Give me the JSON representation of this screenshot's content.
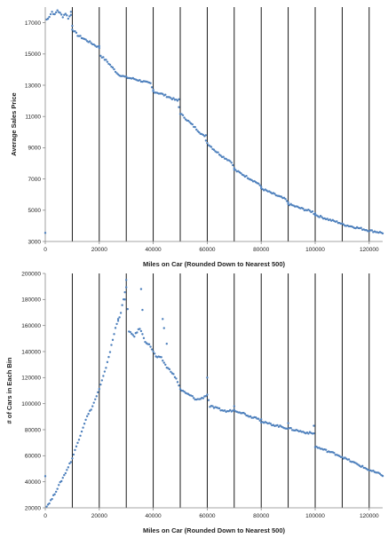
{
  "chart_data": [
    {
      "type": "scatter",
      "title": "",
      "xlabel": "Miles on Car (Rounded Down to Nearest 500)",
      "ylabel": "Average Sales Price",
      "xlim": [
        0,
        125000
      ],
      "ylim": [
        3000,
        18000
      ],
      "xticks": [
        0,
        20000,
        40000,
        60000,
        80000,
        100000,
        120000
      ],
      "yticks": [
        3000,
        5000,
        7000,
        9000,
        11000,
        13000,
        15000,
        17000
      ],
      "vlines": [
        10000,
        20000,
        30000,
        40000,
        50000,
        60000,
        70000,
        80000,
        90000,
        100000,
        110000,
        120000
      ],
      "marker_color": "#4f81bd",
      "anchors": [
        [
          500,
          17200
        ],
        [
          1500,
          17400
        ],
        [
          2500,
          17700
        ],
        [
          3500,
          17500
        ],
        [
          4500,
          17800
        ],
        [
          5500,
          17600
        ],
        [
          6500,
          17400
        ],
        [
          7500,
          17600
        ],
        [
          8500,
          17300
        ],
        [
          9500,
          17500
        ],
        [
          10000,
          16600
        ],
        [
          12000,
          16200
        ],
        [
          15000,
          15900
        ],
        [
          18000,
          15600
        ],
        [
          20000,
          15400
        ],
        [
          20500,
          14900
        ],
        [
          23000,
          14500
        ],
        [
          25000,
          14100
        ],
        [
          27000,
          13700
        ],
        [
          30000,
          13500
        ],
        [
          33000,
          13400
        ],
        [
          36000,
          13250
        ],
        [
          39000,
          13100
        ],
        [
          40000,
          12600
        ],
        [
          43000,
          12450
        ],
        [
          45000,
          12300
        ],
        [
          47000,
          12150
        ],
        [
          49000,
          12000
        ],
        [
          50000,
          11200
        ],
        [
          53000,
          10700
        ],
        [
          56000,
          10200
        ],
        [
          59000,
          9700
        ],
        [
          60000,
          9300
        ],
        [
          63000,
          8800
        ],
        [
          66000,
          8400
        ],
        [
          69000,
          8100
        ],
        [
          70000,
          7600
        ],
        [
          73000,
          7300
        ],
        [
          76000,
          7000
        ],
        [
          79000,
          6700
        ],
        [
          80000,
          6400
        ],
        [
          85000,
          6000
        ],
        [
          89000,
          5700
        ],
        [
          90000,
          5400
        ],
        [
          95000,
          5100
        ],
        [
          99000,
          4900
        ],
        [
          100000,
          4700
        ],
        [
          105000,
          4400
        ],
        [
          109000,
          4200
        ],
        [
          110000,
          4100
        ],
        [
          115000,
          3900
        ],
        [
          120000,
          3700
        ],
        [
          125000,
          3550
        ]
      ],
      "outliers": [
        [
          9500,
          17700
        ],
        [
          10000,
          16800
        ],
        [
          20000,
          15500
        ],
        [
          40000,
          12700
        ],
        [
          49500,
          12100
        ],
        [
          59500,
          9800
        ],
        [
          70000,
          7700
        ],
        [
          80000,
          6500
        ],
        [
          90000,
          5500
        ],
        [
          100000,
          4800
        ]
      ]
    },
    {
      "type": "scatter",
      "title": "",
      "xlabel": "Miles on Car (Rounded Down to Nearest 500)",
      "ylabel": "# of Cars in Each Bin",
      "xlim": [
        0,
        125000
      ],
      "ylim": [
        20000,
        200000
      ],
      "xticks": [
        0,
        20000,
        40000,
        60000,
        80000,
        100000,
        120000
      ],
      "yticks": [
        20000,
        40000,
        60000,
        80000,
        100000,
        120000,
        140000,
        160000,
        180000,
        200000
      ],
      "vlines": [
        10000,
        20000,
        30000,
        40000,
        50000,
        60000,
        70000,
        80000,
        90000,
        100000,
        110000,
        120000
      ],
      "marker_color": "#4f81bd",
      "anchors": [
        [
          500,
          21000
        ],
        [
          2500,
          27000
        ],
        [
          5000,
          37000
        ],
        [
          7500,
          47000
        ],
        [
          10000,
          58000
        ],
        [
          12500,
          73000
        ],
        [
          15000,
          88000
        ],
        [
          17500,
          98000
        ],
        [
          20000,
          111000
        ],
        [
          22000,
          124000
        ],
        [
          24000,
          140000
        ],
        [
          26000,
          158000
        ],
        [
          28000,
          170000
        ],
        [
          30000,
          190000
        ],
        [
          31000,
          155000
        ],
        [
          33000,
          152000
        ],
        [
          35000,
          158000
        ],
        [
          37000,
          148000
        ],
        [
          39000,
          144000
        ],
        [
          41000,
          136000
        ],
        [
          43000,
          135000
        ],
        [
          45000,
          128000
        ],
        [
          47000,
          124000
        ],
        [
          49000,
          117000
        ],
        [
          50000,
          111000
        ],
        [
          52000,
          108000
        ],
        [
          54000,
          106000
        ],
        [
          56000,
          103000
        ],
        [
          58000,
          104000
        ],
        [
          60000,
          107000
        ],
        [
          61000,
          98000
        ],
        [
          64000,
          96000
        ],
        [
          67000,
          94000
        ],
        [
          70000,
          95000
        ],
        [
          73000,
          93000
        ],
        [
          76000,
          90000
        ],
        [
          79000,
          89000
        ],
        [
          80000,
          86000
        ],
        [
          84000,
          84000
        ],
        [
          88000,
          82000
        ],
        [
          92000,
          80000
        ],
        [
          96000,
          78000
        ],
        [
          99500,
          77000
        ],
        [
          100000,
          67000
        ],
        [
          104000,
          64000
        ],
        [
          108000,
          61000
        ],
        [
          112000,
          57000
        ],
        [
          116000,
          53000
        ],
        [
          120000,
          49000
        ],
        [
          125000,
          45000
        ]
      ],
      "outliers": [
        [
          29500,
          180000
        ],
        [
          30000,
          195000
        ],
        [
          27000,
          165000
        ],
        [
          35500,
          188000
        ],
        [
          36000,
          172000
        ],
        [
          43500,
          165000
        ],
        [
          44000,
          158000
        ],
        [
          45000,
          146000
        ],
        [
          60000,
          120000
        ],
        [
          70000,
          98000
        ],
        [
          80000,
          88000
        ],
        [
          90000,
          85000
        ],
        [
          99500,
          83000
        ]
      ]
    }
  ]
}
